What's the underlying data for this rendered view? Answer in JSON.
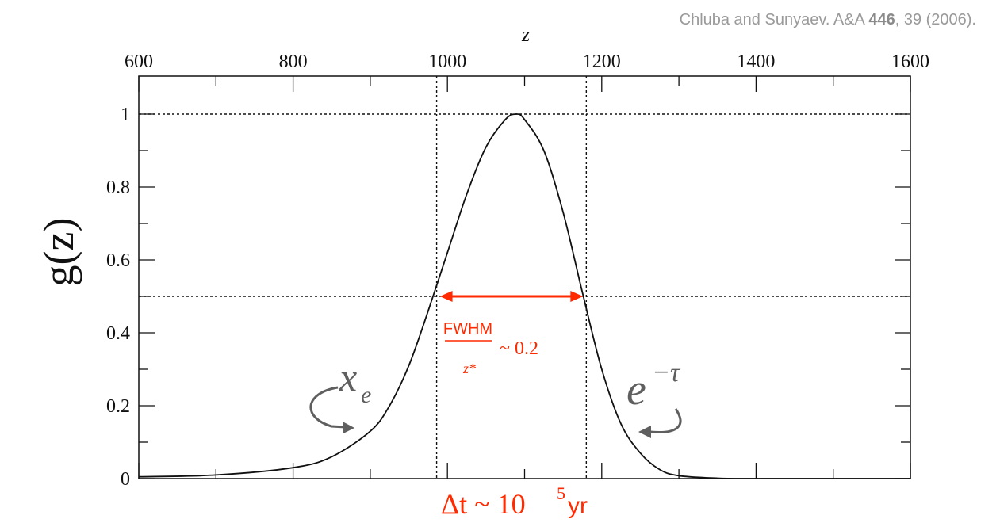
{
  "citation": {
    "authors": "Chluba and Sunyaev. A&A ",
    "volume": "446",
    "pages": ", 39 (2006)."
  },
  "chart_data": {
    "type": "line",
    "title": "",
    "xlabel": "z",
    "ylabel": "g(z)",
    "xlim": [
      600,
      1600
    ],
    "ylim": [
      0,
      1.05
    ],
    "x_ticks": [
      600,
      800,
      1000,
      1200,
      1400,
      1600
    ],
    "x_tick_labels": [
      "600",
      "800",
      "1000",
      "1200",
      "1400",
      "1600"
    ],
    "x_axis_position": "top",
    "y_ticks": [
      0,
      0.2,
      0.4,
      0.6,
      0.8,
      1
    ],
    "y_tick_labels": [
      "0",
      "0.2",
      "0.4",
      "0.6",
      "0.8",
      "1"
    ],
    "grid": false,
    "legend": "none",
    "series": [
      {
        "color": "#111111",
        "x": [
          600,
          700,
          800,
          850,
          900,
          925,
          950,
          975,
          1000,
          1025,
          1050,
          1075,
          1089,
          1100,
          1125,
          1150,
          1175,
          1200,
          1225,
          1250,
          1275,
          1300,
          1350,
          1400,
          1500,
          1600
        ],
        "y": [
          0.005,
          0.01,
          0.03,
          0.06,
          0.13,
          0.2,
          0.31,
          0.46,
          0.62,
          0.78,
          0.91,
          0.985,
          1.0,
          0.985,
          0.9,
          0.73,
          0.51,
          0.3,
          0.15,
          0.07,
          0.025,
          0.008,
          0.001,
          0.0,
          0.0,
          0.0
        ]
      }
    ],
    "reference_lines": {
      "vertical_x": [
        986,
        1180
      ],
      "horizontal_y": [
        0.5,
        1.0
      ]
    },
    "annotations": {
      "fwhm_numerator": "FWHM",
      "fwhm_denominator": "z*",
      "fwhm_value": "~ 0.2",
      "left_curve_label": "x",
      "left_curve_subscript": "e",
      "right_curve_label": "e",
      "right_curve_superscript": "−τ",
      "bottom_label_prefix": "Δt ~ 10",
      "bottom_label_exponent": "5",
      "bottom_label_unit": "yr"
    },
    "colors": {
      "curve": "#111111",
      "axes": "#111111",
      "highlight": "#ff2a00",
      "annotation_gray": "#5f5f5f"
    }
  }
}
